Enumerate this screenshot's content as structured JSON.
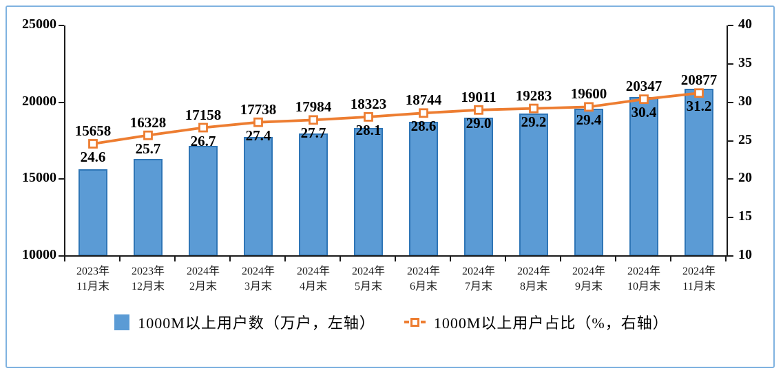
{
  "frame": {
    "border_color": "#7FB2E0",
    "background": "#FFFFFF"
  },
  "chart_data": {
    "type": "bar",
    "combo": "bar+line",
    "grid": false,
    "legend_position": "bottom",
    "categories": [
      [
        "2023年",
        "11月末"
      ],
      [
        "2023年",
        "12月末"
      ],
      [
        "2024年",
        "2月末"
      ],
      [
        "2024年",
        "3月末"
      ],
      [
        "2024年",
        "4月末"
      ],
      [
        "2024年",
        "5月末"
      ],
      [
        "2024年",
        "6月末"
      ],
      [
        "2024年",
        "7月末"
      ],
      [
        "2024年",
        "8月末"
      ],
      [
        "2024年",
        "9月末"
      ],
      [
        "2024年",
        "10月末"
      ],
      [
        "2024年",
        "11月末"
      ]
    ],
    "series": [
      {
        "name": "1000M以上用户数（万户，左轴）",
        "type": "bar",
        "axis": "left",
        "color": "#5B9BD5",
        "border_color": "#2E75B6",
        "values": [
          15658,
          16328,
          17158,
          17738,
          17984,
          18323,
          18744,
          19011,
          19283,
          19600,
          20347,
          20877
        ]
      },
      {
        "name": "1000M以上用户占比（%，右轴）",
        "type": "line",
        "axis": "right",
        "color": "#ED7D31",
        "marker": "open-square",
        "values": [
          24.6,
          25.7,
          26.7,
          27.4,
          27.7,
          28.1,
          28.6,
          29.0,
          29.2,
          29.4,
          30.4,
          31.2
        ],
        "labels": [
          "24.6",
          "25.7",
          "26.7",
          "27.4",
          "27.7",
          "28.1",
          "28.6",
          "29.0",
          "29.2",
          "29.4",
          "30.4",
          "31.2"
        ]
      }
    ],
    "left_axis": {
      "min": 10000,
      "max": 25000,
      "step": 5000,
      "ticks": [
        25000,
        20000,
        15000,
        10000
      ]
    },
    "right_axis": {
      "min": 10,
      "max": 40,
      "step": 5,
      "ticks": [
        40,
        35,
        30,
        25,
        20,
        15,
        10
      ]
    }
  }
}
